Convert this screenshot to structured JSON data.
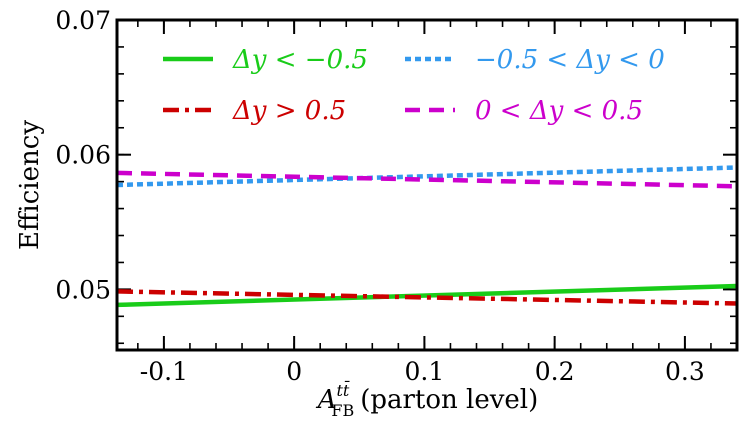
{
  "chart_data": {
    "type": "line",
    "title": "",
    "xlabel_main": "A",
    "xlabel_sup": "tt̄",
    "xlabel_sub": "FB",
    "xlabel_rest": "(parton level)",
    "ylabel": "Efficiency",
    "xlim": [
      -0.136,
      0.34
    ],
    "ylim": [
      0.0455,
      0.07
    ],
    "xticks": [
      -0.1,
      0,
      0.1,
      0.2,
      0.3
    ],
    "xtick_labels": [
      "-0.1",
      "0",
      "0.1",
      "0.2",
      "0.3"
    ],
    "yticks": [
      0.05,
      0.06,
      0.07
    ],
    "ytick_labels": [
      "0.05",
      "0.06",
      "0.07"
    ],
    "grid": false,
    "legend_position": "top",
    "series": [
      {
        "name": "Δy < −0.5",
        "style": "solid",
        "color": "#19cc19",
        "x": [
          -0.136,
          0.34
        ],
        "y": [
          0.04885,
          0.05025
        ]
      },
      {
        "name": "−0.5 < Δy < 0",
        "style": "dotted",
        "color": "#3399ee",
        "x": [
          -0.136,
          0.34
        ],
        "y": [
          0.05775,
          0.05905
        ]
      },
      {
        "name": "Δy > 0.5",
        "style": "dashdot",
        "color": "#cc0000",
        "x": [
          -0.136,
          0.34
        ],
        "y": [
          0.04985,
          0.04895
        ]
      },
      {
        "name": "0 < Δy < 0.5",
        "style": "dashed",
        "color": "#cc00cc",
        "x": [
          -0.136,
          0.34
        ],
        "y": [
          0.05865,
          0.05765
        ]
      }
    ]
  }
}
